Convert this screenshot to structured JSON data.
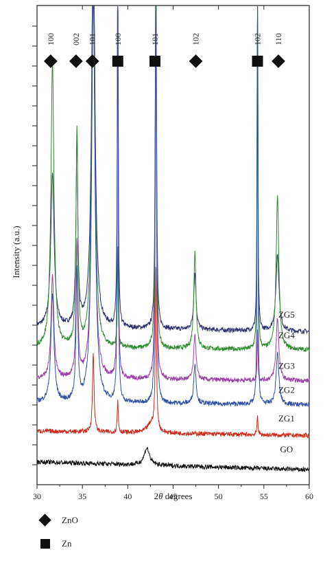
{
  "chart_data": {
    "type": "line",
    "xlabel_prefix": "2",
    "xlabel_symbol": "θ",
    "xlabel_suffix": " degrees",
    "ylabel": "Intensity (a.u.)",
    "xlim": [
      30,
      60
    ],
    "x_ticks": [
      "30",
      "35",
      "40",
      "45",
      "50",
      "55",
      "60"
    ],
    "peak_markers": [
      {
        "label": "100",
        "x": 31.5,
        "phase": "ZnO"
      },
      {
        "label": "002",
        "x": 34.3,
        "phase": "ZnO"
      },
      {
        "label": "101",
        "x": 36.1,
        "phase": "ZnO"
      },
      {
        "label": "100",
        "x": 38.9,
        "phase": "Zn"
      },
      {
        "label": "101",
        "x": 43.0,
        "phase": "Zn"
      },
      {
        "label": "102",
        "x": 47.5,
        "phase": "ZnO"
      },
      {
        "label": "102",
        "x": 54.3,
        "phase": "Zn"
      },
      {
        "label": "110",
        "x": 56.6,
        "phase": "ZnO"
      }
    ],
    "series": [
      {
        "name": "ZG5",
        "color": "#2b2f6b",
        "baseline_start": 0.63,
        "baseline_end": 0.59,
        "peaks": [
          [
            31.7,
            1.35,
            0.22
          ],
          [
            34.4,
            1.65,
            0.12
          ],
          [
            36.2,
            3.6,
            0.22
          ],
          [
            38.9,
            3.6,
            0.06
          ],
          [
            43.1,
            3.6,
            0.08
          ],
          [
            47.4,
            0.5,
            0.15
          ],
          [
            54.3,
            3.6,
            0.05
          ],
          [
            56.5,
            0.68,
            0.2
          ]
        ]
      },
      {
        "name": "ZG4",
        "color": "#2e8b2e",
        "baseline_start": 0.45,
        "baseline_end": 0.43,
        "peaks": [
          [
            31.7,
            2.5,
            0.2
          ],
          [
            34.4,
            1.9,
            0.12
          ],
          [
            36.2,
            3.6,
            0.2
          ],
          [
            38.9,
            0.85,
            0.06
          ],
          [
            43.1,
            3.6,
            0.08
          ],
          [
            47.4,
            0.85,
            0.15
          ],
          [
            54.3,
            3.6,
            0.05
          ],
          [
            56.5,
            1.35,
            0.18
          ]
        ]
      },
      {
        "name": "ZG3",
        "color": "#9a3fa8",
        "baseline_start": 0.18,
        "baseline_end": 0.16,
        "peaks": [
          [
            31.7,
            0.9,
            0.18
          ],
          [
            34.4,
            1.2,
            0.12
          ],
          [
            36.2,
            3.6,
            0.2
          ],
          [
            38.9,
            3.6,
            0.06
          ],
          [
            43.1,
            3.6,
            0.08
          ],
          [
            47.4,
            0.4,
            0.15
          ],
          [
            54.3,
            0.45,
            0.05
          ],
          [
            56.5,
            0.55,
            0.18
          ]
        ]
      },
      {
        "name": "ZG2",
        "color": "#2f4fa3",
        "baseline_start": -0.03,
        "baseline_end": -0.05,
        "peaks": [
          [
            31.7,
            0.95,
            0.2
          ],
          [
            34.4,
            1.15,
            0.12
          ],
          [
            36.2,
            3.6,
            0.22
          ],
          [
            38.9,
            3.6,
            0.06
          ],
          [
            43.1,
            3.6,
            0.08
          ],
          [
            47.4,
            0.35,
            0.15
          ],
          [
            54.3,
            3.6,
            0.05
          ],
          [
            56.5,
            0.45,
            0.18
          ]
        ]
      },
      {
        "name": "ZG1",
        "color": "#cc2a1a",
        "baseline_start": -0.28,
        "baseline_end": -0.32,
        "peaks": [
          [
            36.2,
            0.7,
            0.1
          ],
          [
            38.9,
            0.28,
            0.07
          ],
          [
            42.6,
            0.08,
            0.5
          ],
          [
            43.1,
            1.4,
            0.08
          ],
          [
            54.3,
            0.18,
            0.06
          ]
        ]
      },
      {
        "name": "GO",
        "color": "#111111",
        "baseline_start": -0.55,
        "baseline_end": -0.62,
        "peaks": [
          [
            42.1,
            0.15,
            0.35
          ]
        ]
      }
    ],
    "series_label_x": 57.5,
    "legend": [
      {
        "symbol": "diamond",
        "label": "ZnO"
      },
      {
        "symbol": "square",
        "label": "Zn"
      }
    ],
    "grid": false
  }
}
